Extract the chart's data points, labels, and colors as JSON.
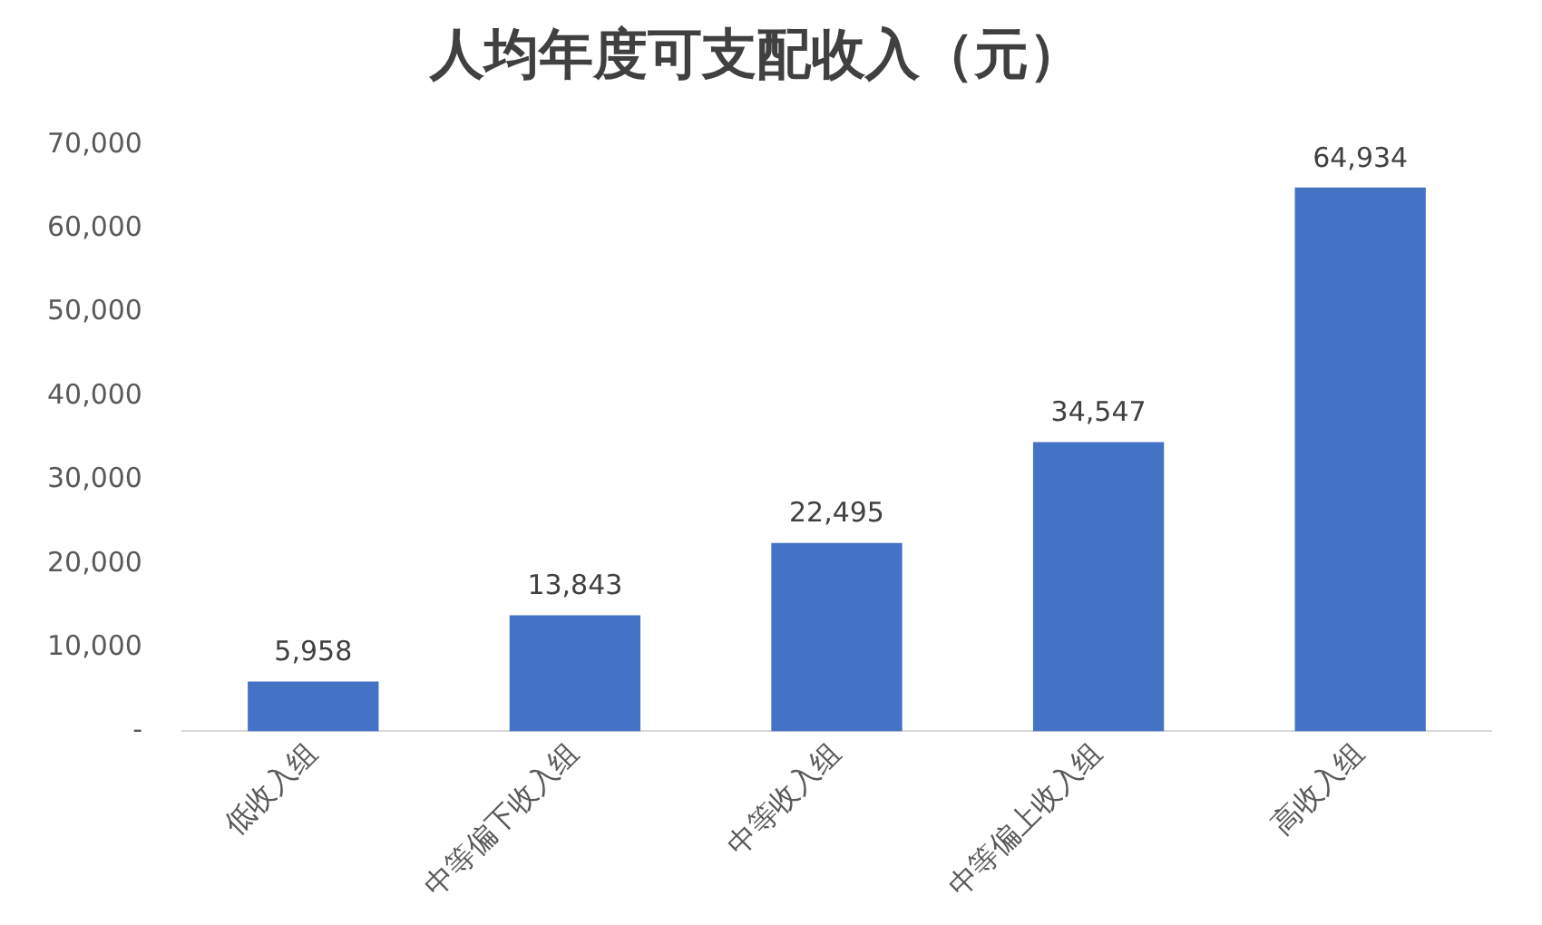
{
  "chart_data": {
    "type": "bar",
    "title": "人均年度可支配收入（元）",
    "categories": [
      "低收入组",
      "中等偏下收入组",
      "中等收入组",
      "中等偏上收入组",
      "高收入组"
    ],
    "values": [
      5958,
      13843,
      22495,
      34547,
      64934
    ],
    "value_labels": [
      "5,958",
      "13,843",
      "22,495",
      "34,547",
      "64,934"
    ],
    "color": "#4472c4",
    "ylim": [
      0,
      70000
    ],
    "yticks": [
      {
        "value": 0,
        "label": "-"
      },
      {
        "value": 10000,
        "label": "10,000"
      },
      {
        "value": 20000,
        "label": "20,000"
      },
      {
        "value": 30000,
        "label": "30,000"
      },
      {
        "value": 40000,
        "label": "40,000"
      },
      {
        "value": 50000,
        "label": "50,000"
      },
      {
        "value": 60000,
        "label": "60,000"
      },
      {
        "value": 70000,
        "label": "70,000"
      }
    ],
    "grid": false,
    "legend": false
  }
}
